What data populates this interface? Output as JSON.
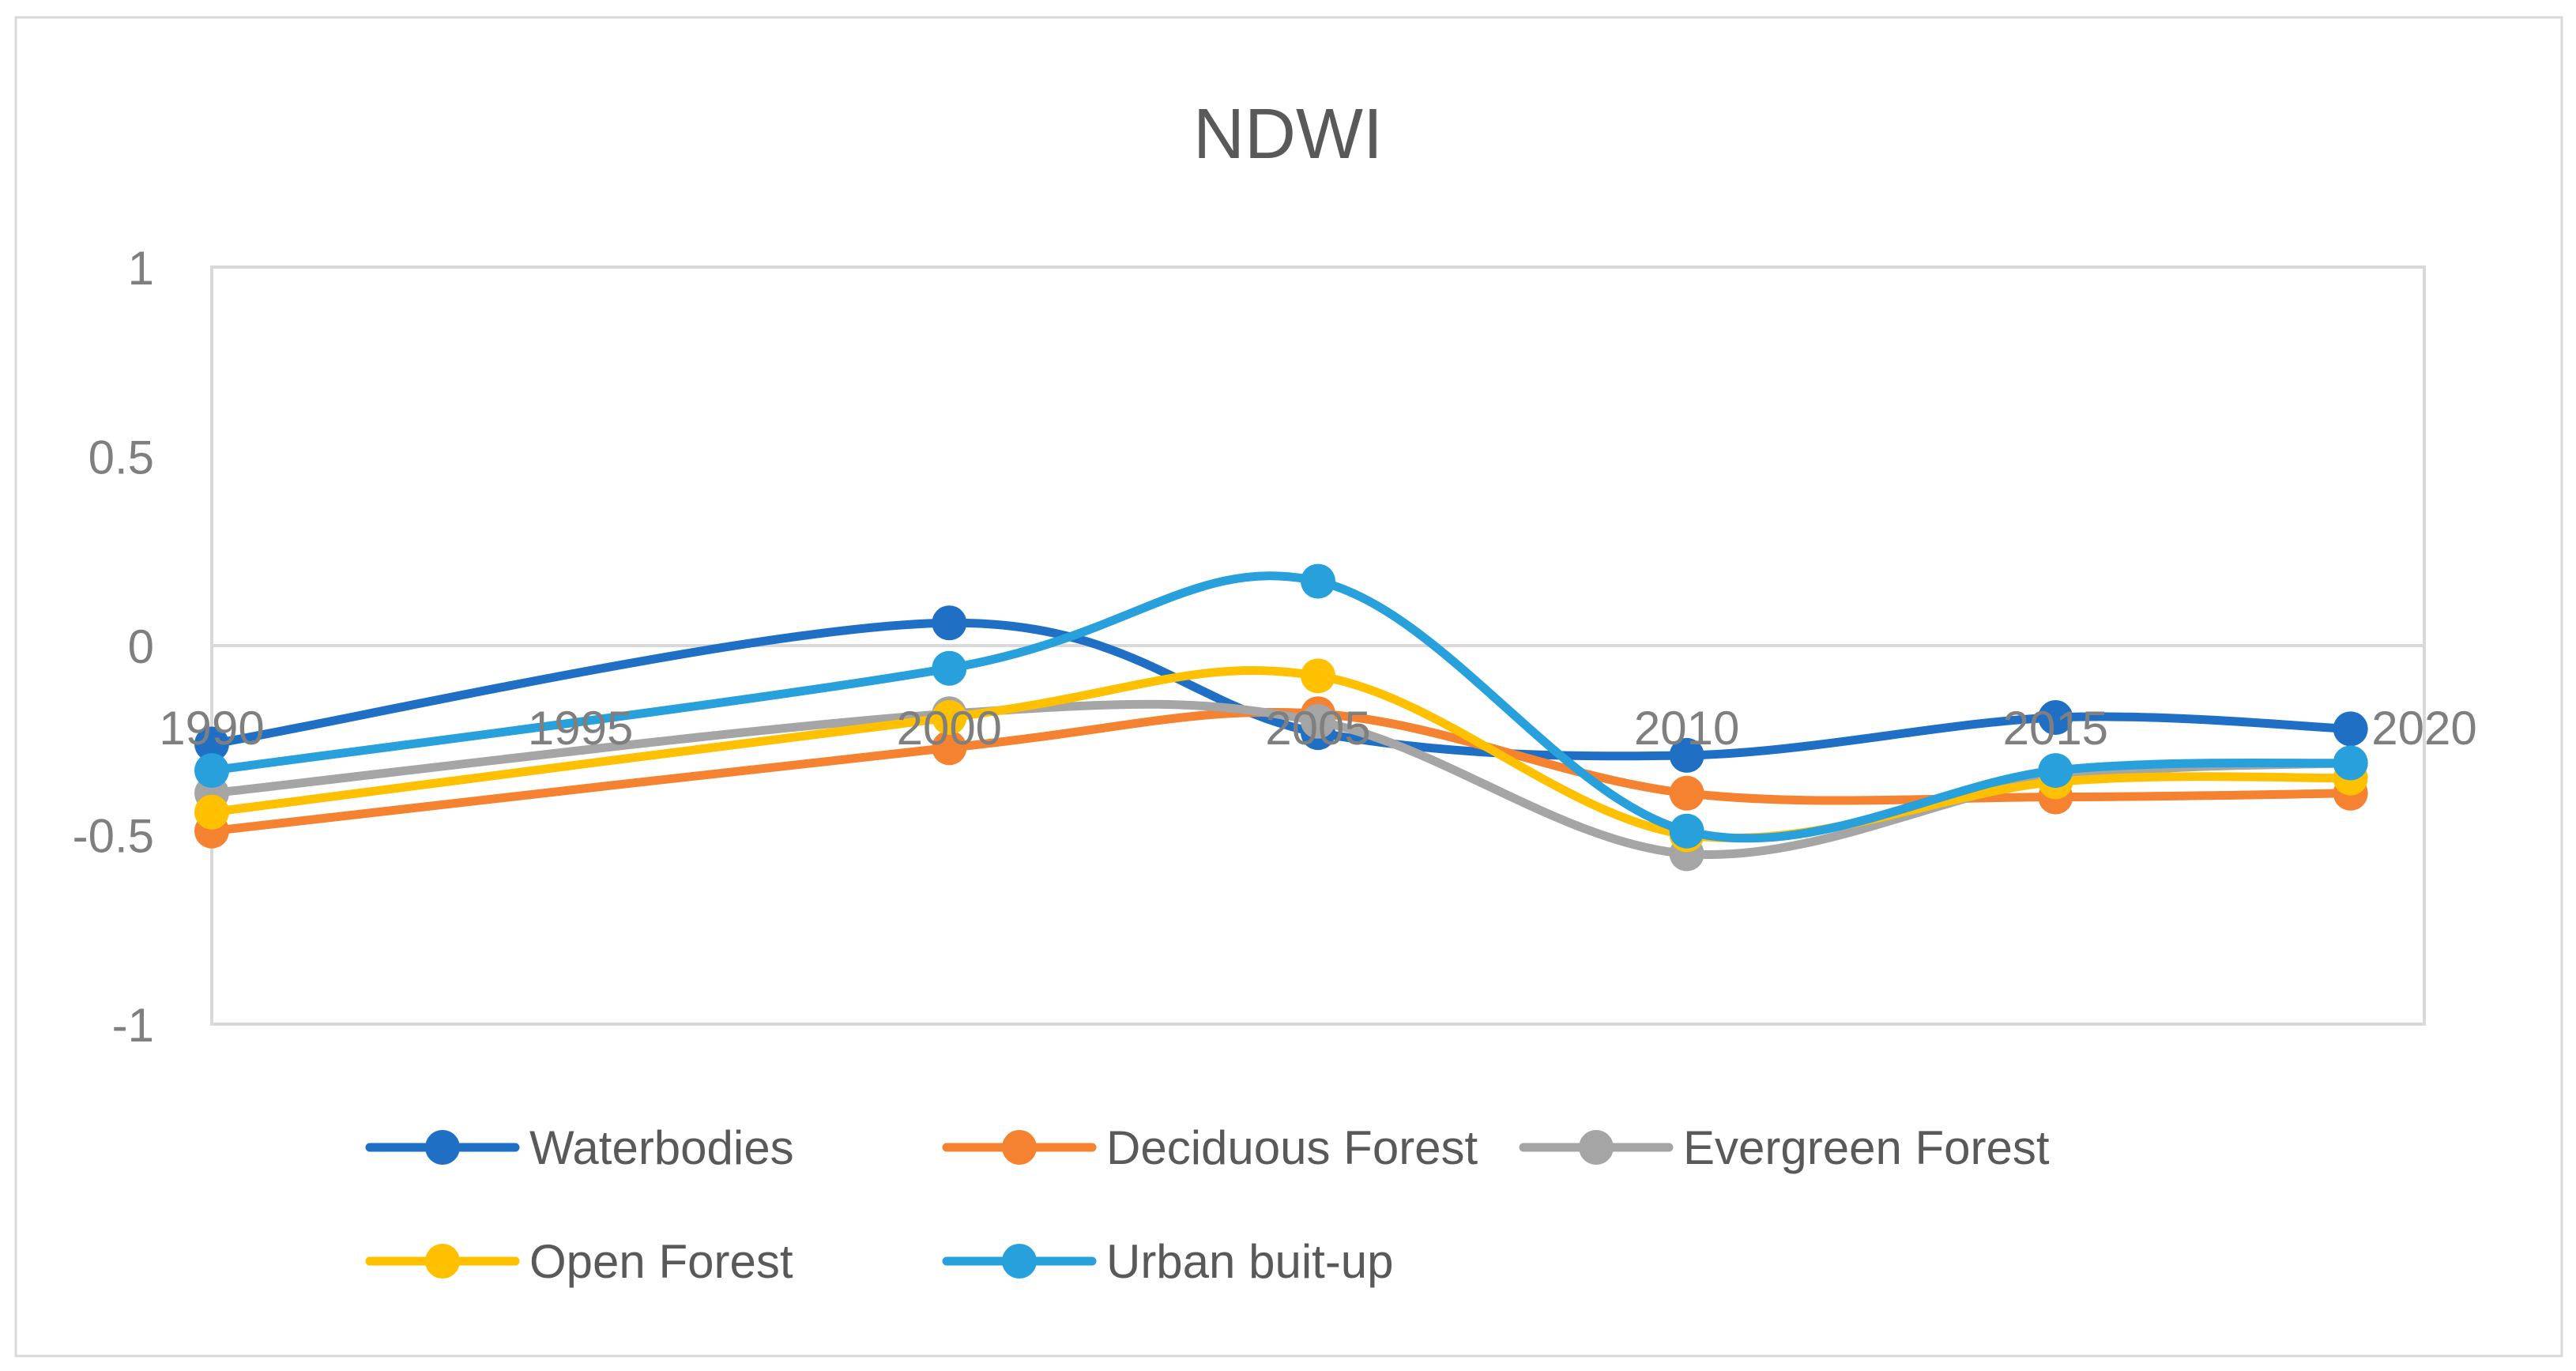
{
  "chart_data": {
    "type": "line",
    "title": "NDWI",
    "xlabel": "",
    "ylabel": "",
    "x_ticks": [
      "1990",
      "1995",
      "2000",
      "2005",
      "2010",
      "2015",
      "2020"
    ],
    "y_ticks": [
      "1",
      "0.5",
      "0",
      "-0.5",
      "-1"
    ],
    "xlim": [
      1990,
      2020
    ],
    "ylim": [
      -1,
      1
    ],
    "x": [
      1990,
      2000,
      2005,
      2010,
      2015,
      2019
    ],
    "smooth": true,
    "grid": false,
    "legend_position": "bottom",
    "series": [
      {
        "name": "Waterbodies",
        "color": "#1f6fc5",
        "values": [
          -0.26,
          0.06,
          -0.23,
          -0.29,
          -0.19,
          -0.22
        ]
      },
      {
        "name": "Deciduous Forest",
        "color": "#f58231",
        "values": [
          -0.49,
          -0.27,
          -0.18,
          -0.39,
          -0.4,
          -0.39
        ]
      },
      {
        "name": "Evergreen Forest",
        "color": "#a5a5a5",
        "values": [
          -0.39,
          -0.18,
          -0.2,
          -0.55,
          -0.35,
          -0.31
        ]
      },
      {
        "name": "Open Forest",
        "color": "#ffc000",
        "values": [
          -0.44,
          -0.19,
          -0.08,
          -0.5,
          -0.36,
          -0.35
        ]
      },
      {
        "name": "Urban buit-up",
        "color": "#27a0dc",
        "values": [
          -0.33,
          -0.06,
          0.17,
          -0.49,
          -0.33,
          -0.31
        ]
      }
    ]
  }
}
